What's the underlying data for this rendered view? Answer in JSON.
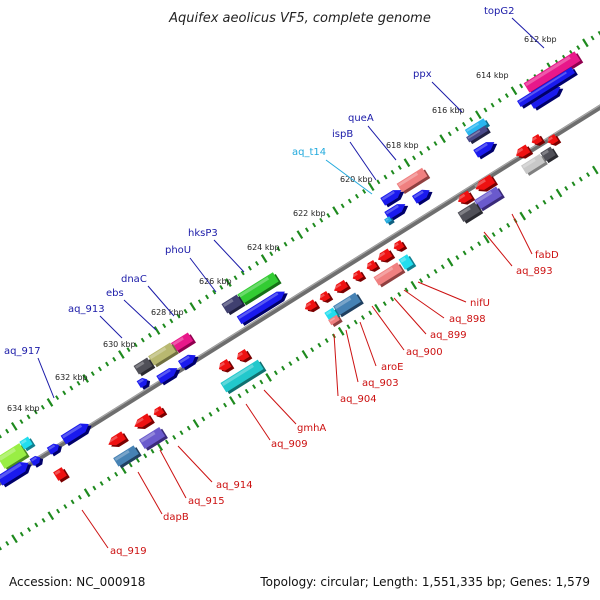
{
  "title": "Aquifex aeolicus VF5, complete genome",
  "accession": "Accession: NC_000918",
  "summary": "Topology: circular; Length: 1,551,335 bp; Genes: 1,579",
  "colors": {
    "forward_label": "#1a1aa8",
    "reverse_label": "#cc1111",
    "rna_label": "#22aadd",
    "backbone": "#777777",
    "tick": "#1e8a1e"
  },
  "scale_labels": [
    "612 kbp",
    "614 kbp",
    "616 kbp",
    "618 kbp",
    "620 kbp",
    "622 kbp",
    "624 kbp",
    "626 kbp",
    "628 kbp",
    "630 kbp",
    "632 kbp",
    "634 kbp"
  ],
  "forward_genes": [
    "topG2",
    "ppx",
    "queA",
    "ispB",
    "aq_t14",
    "hksP3",
    "phoU",
    "dnaC",
    "ebs",
    "aq_913",
    "aq_917"
  ],
  "reverse_genes": [
    "fabD",
    "aq_893",
    "nifU",
    "aq_898",
    "aq_899",
    "aq_900",
    "aroE",
    "aq_903",
    "aq_904",
    "gmhA",
    "aq_909",
    "aq_914",
    "aq_915",
    "dapB",
    "aq_919"
  ]
}
